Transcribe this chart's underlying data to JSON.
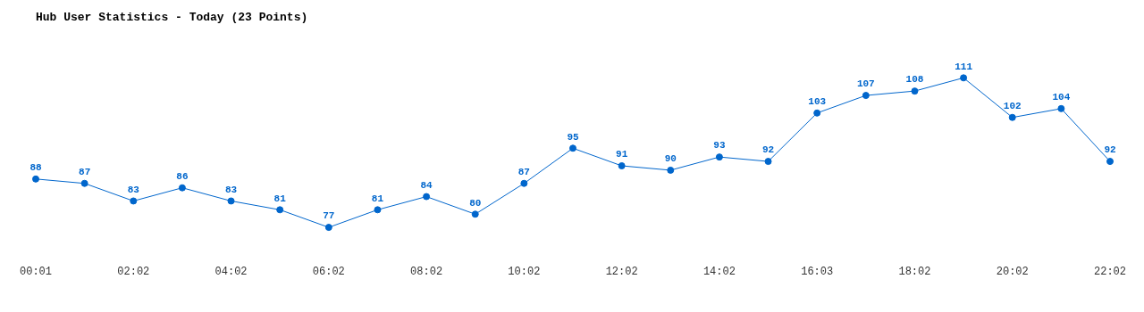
{
  "chart_data": {
    "type": "line",
    "title": "Hub User Statistics - Today (23 Points)",
    "categories": [
      "00:01",
      null,
      "02:02",
      null,
      "04:02",
      null,
      "06:02",
      null,
      "08:02",
      null,
      "10:02",
      null,
      "12:02",
      null,
      "14:02",
      null,
      "16:03",
      null,
      "18:02",
      null,
      "20:02",
      null,
      "22:02"
    ],
    "series": [
      {
        "color": "#0066cc",
        "values": [
          88,
          87,
          83,
          86,
          83,
          81,
          77,
          81,
          84,
          80,
          87,
          95,
          91,
          90,
          93,
          92,
          103,
          107,
          108,
          111,
          102,
          104,
          92
        ]
      }
    ],
    "data_labels": true,
    "marker": "circle",
    "line_style": "solid"
  }
}
